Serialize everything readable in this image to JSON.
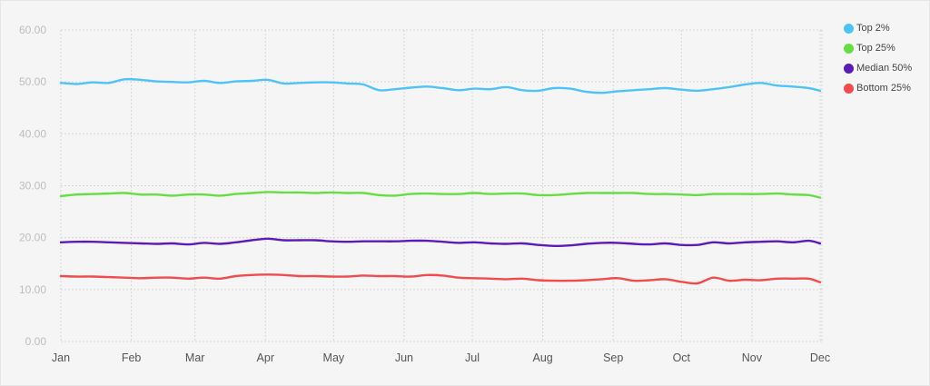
{
  "chart_data": {
    "type": "line",
    "title": "",
    "xlabel": "",
    "ylabel": "",
    "ylim": [
      0,
      60
    ],
    "yticks": [
      "0.00",
      "10.00",
      "20.00",
      "30.00",
      "40.00",
      "50.00",
      "60.00"
    ],
    "xticks": [
      "Jan",
      "Feb",
      "Mar",
      "Apr",
      "May",
      "Jun",
      "Jul",
      "Aug",
      "Sep",
      "Oct",
      "Nov",
      "Dec"
    ],
    "grid": true,
    "legend_position": "top-right",
    "x": [
      "Jan 1",
      "Jan 8",
      "Jan 15",
      "Jan 22",
      "Jan 29",
      "Feb 5",
      "Feb 12",
      "Feb 19",
      "Feb 26",
      "Mar 5",
      "Mar 12",
      "Mar 19",
      "Mar 26",
      "Apr 2",
      "Apr 9",
      "Apr 16",
      "Apr 23",
      "Apr 30",
      "May 7",
      "May 14",
      "May 21",
      "May 28",
      "Jun 4",
      "Jun 11",
      "Jun 18",
      "Jun 25",
      "Jul 2",
      "Jul 9",
      "Jul 16",
      "Jul 23",
      "Jul 30",
      "Aug 6",
      "Aug 13",
      "Aug 20",
      "Aug 27",
      "Sep 3",
      "Sep 10",
      "Sep 17",
      "Sep 24",
      "Oct 1",
      "Oct 8",
      "Oct 15",
      "Oct 22",
      "Oct 29",
      "Nov 5",
      "Nov 12",
      "Nov 19",
      "Nov 26",
      "Dec 1"
    ],
    "series": [
      {
        "name": "Top 2%",
        "color": "#4fc3f7",
        "values": [
          49.8,
          49.6,
          49.9,
          49.8,
          50.5,
          50.4,
          50.1,
          50.0,
          49.9,
          50.2,
          49.8,
          50.1,
          50.2,
          50.4,
          49.7,
          49.8,
          49.9,
          49.9,
          49.7,
          49.5,
          48.4,
          48.6,
          48.9,
          49.1,
          48.8,
          48.4,
          48.7,
          48.6,
          49.0,
          48.4,
          48.3,
          48.8,
          48.7,
          48.1,
          47.9,
          48.2,
          48.4,
          48.6,
          48.8,
          48.5,
          48.3,
          48.6,
          49.0,
          49.5,
          49.8,
          49.3,
          49.1,
          48.8,
          48.3
        ]
      },
      {
        "name": "Top 25%",
        "color": "#66dd44",
        "values": [
          28.0,
          28.3,
          28.4,
          28.5,
          28.6,
          28.3,
          28.3,
          28.1,
          28.3,
          28.3,
          28.1,
          28.4,
          28.6,
          28.8,
          28.7,
          28.7,
          28.6,
          28.7,
          28.6,
          28.6,
          28.2,
          28.1,
          28.4,
          28.5,
          28.4,
          28.4,
          28.6,
          28.4,
          28.5,
          28.5,
          28.2,
          28.2,
          28.4,
          28.6,
          28.6,
          28.6,
          28.6,
          28.4,
          28.4,
          28.3,
          28.2,
          28.4,
          28.4,
          28.4,
          28.4,
          28.5,
          28.3,
          28.2,
          27.7
        ]
      },
      {
        "name": "Median 50%",
        "color": "#5b1bb5",
        "values": [
          19.1,
          19.2,
          19.2,
          19.1,
          19.0,
          18.9,
          18.8,
          18.9,
          18.7,
          19.0,
          18.8,
          19.1,
          19.5,
          19.8,
          19.5,
          19.5,
          19.5,
          19.3,
          19.2,
          19.3,
          19.3,
          19.3,
          19.4,
          19.4,
          19.2,
          19.0,
          19.1,
          18.9,
          18.8,
          18.9,
          18.6,
          18.4,
          18.5,
          18.8,
          19.0,
          19.0,
          18.8,
          18.7,
          18.9,
          18.6,
          18.6,
          19.1,
          18.9,
          19.1,
          19.2,
          19.3,
          19.1,
          19.4,
          18.9
        ]
      },
      {
        "name": "Bottom 25%",
        "color": "#ef4d4d",
        "values": [
          12.6,
          12.5,
          12.5,
          12.4,
          12.3,
          12.2,
          12.3,
          12.3,
          12.1,
          12.3,
          12.1,
          12.6,
          12.8,
          12.9,
          12.8,
          12.6,
          12.6,
          12.5,
          12.5,
          12.7,
          12.6,
          12.6,
          12.5,
          12.8,
          12.7,
          12.3,
          12.2,
          12.1,
          12.0,
          12.1,
          11.8,
          11.7,
          11.7,
          11.8,
          12.0,
          12.2,
          11.7,
          11.8,
          12.0,
          11.5,
          11.2,
          12.3,
          11.7,
          11.9,
          11.8,
          12.1,
          12.1,
          12.1,
          11.4
        ]
      }
    ]
  }
}
